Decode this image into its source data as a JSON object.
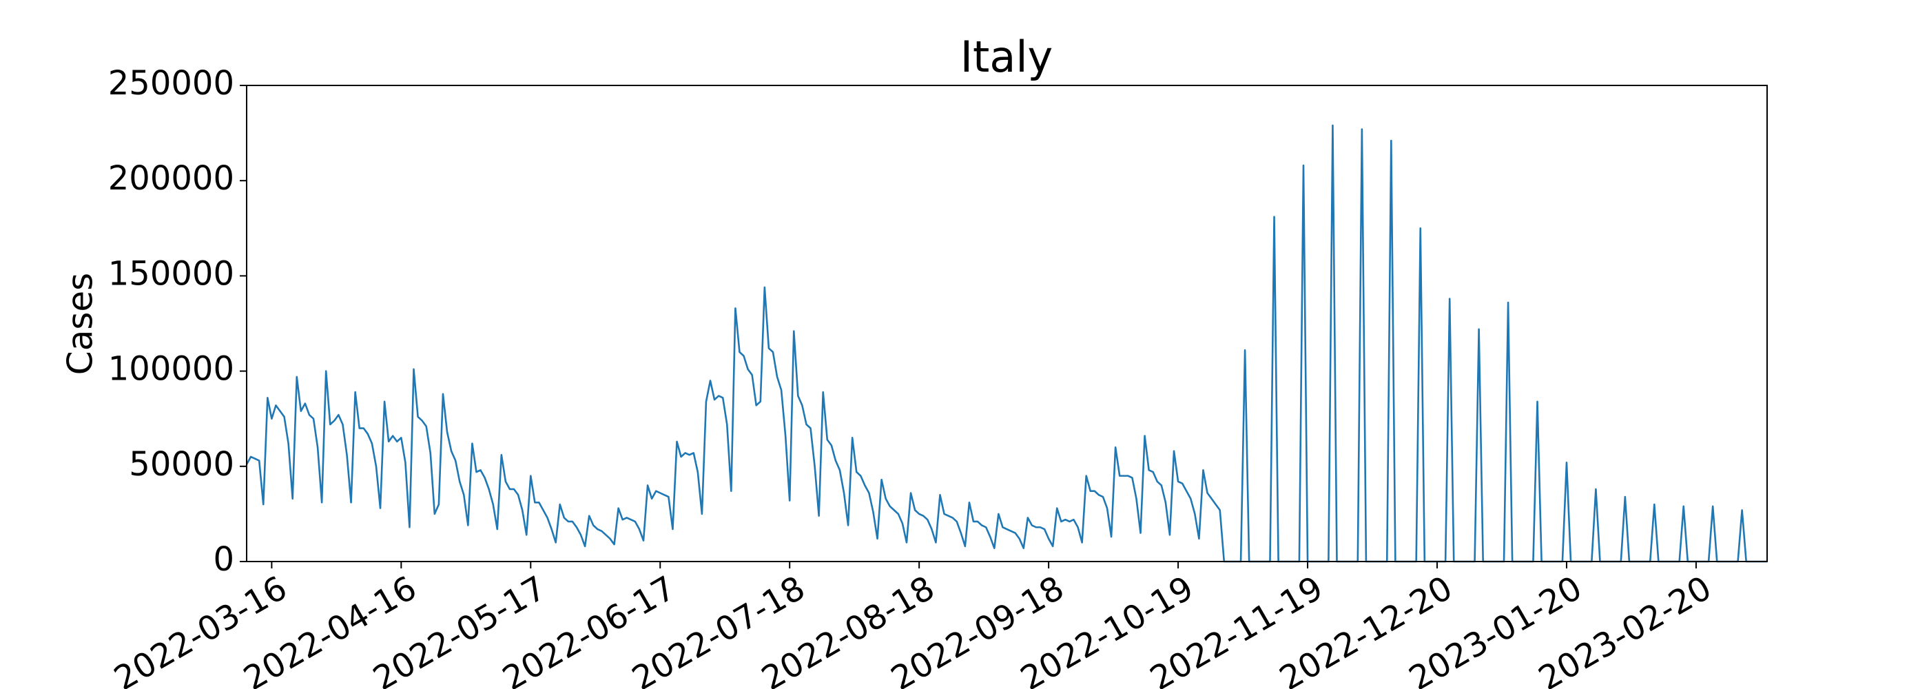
{
  "chart_data": {
    "type": "line",
    "title": "Italy",
    "ylabel": "Cases",
    "xlim": [
      "2022-03-10",
      "2023-03-09"
    ],
    "xticks": [
      "2022-03-16",
      "2022-04-16",
      "2022-05-17",
      "2022-06-17",
      "2022-07-18",
      "2022-08-18",
      "2022-09-18",
      "2022-10-19",
      "2022-11-19",
      "2022-12-20",
      "2023-01-20",
      "2023-02-20"
    ],
    "ylim": [
      0,
      250000
    ],
    "yticks": [
      0,
      50000,
      100000,
      150000,
      200000,
      250000
    ],
    "grid": false,
    "x": [
      "2022-03-10",
      "2022-03-11",
      "2022-03-12",
      "2022-03-13",
      "2022-03-14",
      "2022-03-15",
      "2022-03-16",
      "2022-03-17",
      "2022-03-18",
      "2022-03-19",
      "2022-03-20",
      "2022-03-21",
      "2022-03-22",
      "2022-03-23",
      "2022-03-24",
      "2022-03-25",
      "2022-03-26",
      "2022-03-27",
      "2022-03-28",
      "2022-03-29",
      "2022-03-30",
      "2022-03-31",
      "2022-04-01",
      "2022-04-02",
      "2022-04-03",
      "2022-04-04",
      "2022-04-05",
      "2022-04-06",
      "2022-04-07",
      "2022-04-08",
      "2022-04-09",
      "2022-04-10",
      "2022-04-11",
      "2022-04-12",
      "2022-04-13",
      "2022-04-14",
      "2022-04-15",
      "2022-04-16",
      "2022-04-17",
      "2022-04-18",
      "2022-04-19",
      "2022-04-20",
      "2022-04-21",
      "2022-04-22",
      "2022-04-23",
      "2022-04-24",
      "2022-04-25",
      "2022-04-26",
      "2022-04-27",
      "2022-04-28",
      "2022-04-29",
      "2022-04-30",
      "2022-05-01",
      "2022-05-02",
      "2022-05-03",
      "2022-05-04",
      "2022-05-05",
      "2022-05-06",
      "2022-05-07",
      "2022-05-08",
      "2022-05-09",
      "2022-05-10",
      "2022-05-11",
      "2022-05-12",
      "2022-05-13",
      "2022-05-14",
      "2022-05-15",
      "2022-05-16",
      "2022-05-17",
      "2022-05-18",
      "2022-05-19",
      "2022-05-20",
      "2022-05-21",
      "2022-05-22",
      "2022-05-23",
      "2022-05-24",
      "2022-05-25",
      "2022-05-26",
      "2022-05-27",
      "2022-05-28",
      "2022-05-29",
      "2022-05-30",
      "2022-05-31",
      "2022-06-01",
      "2022-06-02",
      "2022-06-03",
      "2022-06-04",
      "2022-06-05",
      "2022-06-06",
      "2022-06-07",
      "2022-06-08",
      "2022-06-09",
      "2022-06-10",
      "2022-06-11",
      "2022-06-12",
      "2022-06-13",
      "2022-06-14",
      "2022-06-15",
      "2022-06-16",
      "2022-06-17",
      "2022-06-18",
      "2022-06-19",
      "2022-06-20",
      "2022-06-21",
      "2022-06-22",
      "2022-06-23",
      "2022-06-24",
      "2022-06-25",
      "2022-06-26",
      "2022-06-27",
      "2022-06-28",
      "2022-06-29",
      "2022-06-30",
      "2022-07-01",
      "2022-07-02",
      "2022-07-03",
      "2022-07-04",
      "2022-07-05",
      "2022-07-06",
      "2022-07-07",
      "2022-07-08",
      "2022-07-09",
      "2022-07-10",
      "2022-07-11",
      "2022-07-12",
      "2022-07-13",
      "2022-07-14",
      "2022-07-15",
      "2022-07-16",
      "2022-07-17",
      "2022-07-18",
      "2022-07-19",
      "2022-07-20",
      "2022-07-21",
      "2022-07-22",
      "2022-07-23",
      "2022-07-24",
      "2022-07-25",
      "2022-07-26",
      "2022-07-27",
      "2022-07-28",
      "2022-07-29",
      "2022-07-30",
      "2022-07-31",
      "2022-08-01",
      "2022-08-02",
      "2022-08-03",
      "2022-08-04",
      "2022-08-05",
      "2022-08-06",
      "2022-08-07",
      "2022-08-08",
      "2022-08-09",
      "2022-08-10",
      "2022-08-11",
      "2022-08-12",
      "2022-08-13",
      "2022-08-14",
      "2022-08-15",
      "2022-08-16",
      "2022-08-17",
      "2022-08-18",
      "2022-08-19",
      "2022-08-20",
      "2022-08-21",
      "2022-08-22",
      "2022-08-23",
      "2022-08-24",
      "2022-08-25",
      "2022-08-26",
      "2022-08-27",
      "2022-08-28",
      "2022-08-29",
      "2022-08-30",
      "2022-08-31",
      "2022-09-01",
      "2022-09-02",
      "2022-09-03",
      "2022-09-04",
      "2022-09-05",
      "2022-09-06",
      "2022-09-07",
      "2022-09-08",
      "2022-09-09",
      "2022-09-10",
      "2022-09-11",
      "2022-09-12",
      "2022-09-13",
      "2022-09-14",
      "2022-09-15",
      "2022-09-16",
      "2022-09-17",
      "2022-09-18",
      "2022-09-19",
      "2022-09-20",
      "2022-09-21",
      "2022-09-22",
      "2022-09-23",
      "2022-09-24",
      "2022-09-25",
      "2022-09-26",
      "2022-09-27",
      "2022-09-28",
      "2022-09-29",
      "2022-09-30",
      "2022-10-01",
      "2022-10-02",
      "2022-10-03",
      "2022-10-04",
      "2022-10-05",
      "2022-10-06",
      "2022-10-07",
      "2022-10-08",
      "2022-10-09",
      "2022-10-10",
      "2022-10-11",
      "2022-10-12",
      "2022-10-13",
      "2022-10-14",
      "2022-10-15",
      "2022-10-16",
      "2022-10-17",
      "2022-10-18",
      "2022-10-19",
      "2022-10-20",
      "2022-10-21",
      "2022-10-22",
      "2022-10-23",
      "2022-10-24",
      "2022-10-25",
      "2022-10-26",
      "2022-10-27",
      "2022-10-28",
      "2022-10-29",
      "2022-10-30",
      "2022-10-31",
      "2022-11-01",
      "2022-11-02",
      "2022-11-03",
      "2022-11-04",
      "2022-11-05",
      "2022-11-06",
      "2022-11-07",
      "2022-11-08",
      "2022-11-09",
      "2022-11-10",
      "2022-11-11",
      "2022-11-12",
      "2022-11-13",
      "2022-11-14",
      "2022-11-15",
      "2022-11-16",
      "2022-11-17",
      "2022-11-18",
      "2022-11-19",
      "2022-11-20",
      "2022-11-21",
      "2022-11-22",
      "2022-11-23",
      "2022-11-24",
      "2022-11-25",
      "2022-11-26",
      "2022-11-27",
      "2022-11-28",
      "2022-11-29",
      "2022-11-30",
      "2022-12-01",
      "2022-12-02",
      "2022-12-03",
      "2022-12-04",
      "2022-12-05",
      "2022-12-06",
      "2022-12-07",
      "2022-12-08",
      "2022-12-09",
      "2022-12-10",
      "2022-12-11",
      "2022-12-12",
      "2022-12-13",
      "2022-12-14",
      "2022-12-15",
      "2022-12-16",
      "2022-12-17",
      "2022-12-18",
      "2022-12-19",
      "2022-12-20",
      "2022-12-21",
      "2022-12-22",
      "2022-12-23",
      "2022-12-24",
      "2022-12-25",
      "2022-12-26",
      "2022-12-27",
      "2022-12-28",
      "2022-12-29",
      "2022-12-30",
      "2022-12-31",
      "2023-01-01",
      "2023-01-02",
      "2023-01-03",
      "2023-01-04",
      "2023-01-05",
      "2023-01-06",
      "2023-01-07",
      "2023-01-08",
      "2023-01-09",
      "2023-01-10",
      "2023-01-11",
      "2023-01-12",
      "2023-01-13",
      "2023-01-14",
      "2023-01-15",
      "2023-01-16",
      "2023-01-17",
      "2023-01-18",
      "2023-01-19",
      "2023-01-20",
      "2023-01-21",
      "2023-01-22",
      "2023-01-23",
      "2023-01-24",
      "2023-01-25",
      "2023-01-26",
      "2023-01-27",
      "2023-01-28",
      "2023-01-29",
      "2023-01-30",
      "2023-01-31",
      "2023-02-01",
      "2023-02-02",
      "2023-02-03",
      "2023-02-04",
      "2023-02-05",
      "2023-02-06",
      "2023-02-07",
      "2023-02-08",
      "2023-02-09",
      "2023-02-10",
      "2023-02-11",
      "2023-02-12",
      "2023-02-13",
      "2023-02-14",
      "2023-02-15",
      "2023-02-16",
      "2023-02-17",
      "2023-02-18",
      "2023-02-19",
      "2023-02-20",
      "2023-02-21",
      "2023-02-22",
      "2023-02-23",
      "2023-02-24",
      "2023-02-25",
      "2023-02-26",
      "2023-02-27",
      "2023-02-28",
      "2023-03-01",
      "2023-03-02",
      "2023-03-03",
      "2023-03-04",
      "2023-03-05",
      "2023-03-06",
      "2023-03-07",
      "2023-03-08",
      "2023-03-09"
    ],
    "series": [
      {
        "name": "Cases",
        "color": "#1f77b4",
        "values": [
          51000,
          55000,
          54000,
          53000,
          30000,
          86000,
          75000,
          82000,
          79000,
          76000,
          62000,
          33000,
          97000,
          79000,
          83000,
          77000,
          75000,
          60000,
          31000,
          100000,
          72000,
          74000,
          77000,
          72000,
          56000,
          31000,
          89000,
          70000,
          70000,
          67000,
          62000,
          50000,
          28000,
          84000,
          63000,
          66000,
          63000,
          65000,
          52000,
          18000,
          101000,
          76000,
          74000,
          71000,
          57000,
          25000,
          30000,
          88000,
          68000,
          58000,
          53000,
          42000,
          35000,
          19000,
          62000,
          47000,
          48000,
          44000,
          38000,
          30000,
          17000,
          56000,
          42000,
          38000,
          38000,
          35000,
          27000,
          14000,
          45000,
          31000,
          31000,
          27000,
          23000,
          17000,
          10000,
          30000,
          23000,
          21000,
          21000,
          18000,
          14000,
          8000,
          24000,
          19000,
          17000,
          16000,
          14000,
          12000,
          9000,
          28000,
          22000,
          23000,
          22000,
          21000,
          17000,
          11000,
          40000,
          33000,
          37000,
          36000,
          35000,
          34000,
          17000,
          63000,
          55000,
          57000,
          56000,
          57000,
          47000,
          25000,
          84000,
          95000,
          85000,
          87000,
          86000,
          72000,
          37000,
          133000,
          110000,
          108000,
          101000,
          98000,
          82000,
          84000,
          144000,
          112000,
          110000,
          97000,
          90000,
          66000,
          32000,
          121000,
          87000,
          82000,
          72000,
          70000,
          50000,
          24000,
          89000,
          64000,
          61000,
          53000,
          48000,
          36000,
          19000,
          65000,
          47000,
          45000,
          40000,
          36000,
          26000,
          12000,
          43000,
          33000,
          29000,
          27000,
          25000,
          20000,
          10000,
          36000,
          27000,
          25000,
          24000,
          22000,
          17000,
          10000,
          35000,
          25000,
          24000,
          23000,
          21000,
          15000,
          8000,
          31000,
          21000,
          21000,
          19000,
          18000,
          13000,
          7000,
          25000,
          18000,
          17000,
          16000,
          15000,
          12000,
          7000,
          23000,
          19000,
          18000,
          18000,
          17000,
          12000,
          8000,
          28000,
          21000,
          22000,
          21000,
          22000,
          18000,
          10000,
          45000,
          37000,
          37000,
          35000,
          34000,
          28000,
          13000,
          60000,
          45000,
          45000,
          45000,
          44000,
          33000,
          15000,
          66000,
          48000,
          47000,
          42000,
          40000,
          31000,
          14000,
          58000,
          42000,
          41000,
          37000,
          33000,
          25000,
          12000,
          48000,
          36000,
          33000,
          30000,
          27000,
          0,
          0,
          0,
          0,
          0,
          111000,
          0,
          0,
          0,
          0,
          0,
          0,
          181000,
          0,
          0,
          0,
          0,
          0,
          0,
          208000,
          0,
          0,
          0,
          0,
          0,
          0,
          229000,
          0,
          0,
          0,
          0,
          0,
          0,
          227000,
          0,
          0,
          0,
          0,
          0,
          0,
          221000,
          0,
          0,
          0,
          0,
          0,
          0,
          175000,
          0,
          0,
          0,
          0,
          0,
          0,
          138000,
          0,
          0,
          0,
          0,
          0,
          0,
          122000,
          0,
          0,
          0,
          0,
          0,
          0,
          136000,
          0,
          0,
          0,
          0,
          0,
          0,
          84000,
          0,
          0,
          0,
          0,
          0,
          0,
          52000,
          0,
          0,
          0,
          0,
          0,
          0,
          38000,
          0,
          0,
          0,
          0,
          0,
          0,
          34000,
          0,
          0,
          0,
          0,
          0,
          0,
          30000,
          0,
          0,
          0,
          0,
          0,
          0,
          29000,
          0,
          0,
          0,
          0,
          0,
          0,
          29000,
          0,
          0,
          0,
          0,
          0,
          0,
          27000,
          0,
          0,
          0,
          0,
          0,
          0
        ]
      }
    ]
  }
}
